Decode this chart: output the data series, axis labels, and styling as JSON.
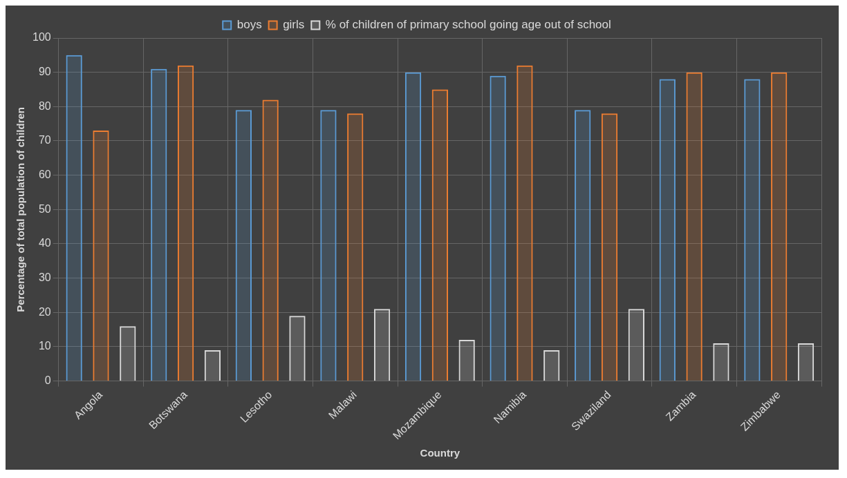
{
  "chart_data": {
    "type": "bar",
    "xlabel": "Country",
    "ylabel": "Percentage of total population of children",
    "categories": [
      "Angola",
      "Botswana",
      "Lesotho",
      "Malawi",
      "Mozambique",
      "Namibia",
      "Swaziland",
      "Zambia",
      "Zimbabwe"
    ],
    "series": [
      {
        "name": "boys",
        "color": "#5b9bd5",
        "values": [
          95,
          91,
          79,
          79,
          90,
          89,
          79,
          88,
          88
        ]
      },
      {
        "name": "girls",
        "color": "#ed7d31",
        "values": [
          73,
          92,
          82,
          78,
          85,
          92,
          78,
          90,
          90
        ]
      },
      {
        "name": "% of children of primary school going age out of school",
        "color": "#d9d9d9",
        "values": [
          16,
          9,
          19,
          21,
          12,
          9,
          21,
          11,
          11
        ]
      }
    ],
    "ylim": [
      0,
      100
    ],
    "yticks": [
      0,
      10,
      20,
      30,
      40,
      50,
      60,
      70,
      80,
      90,
      100
    ],
    "grid": true,
    "legend": "top"
  }
}
